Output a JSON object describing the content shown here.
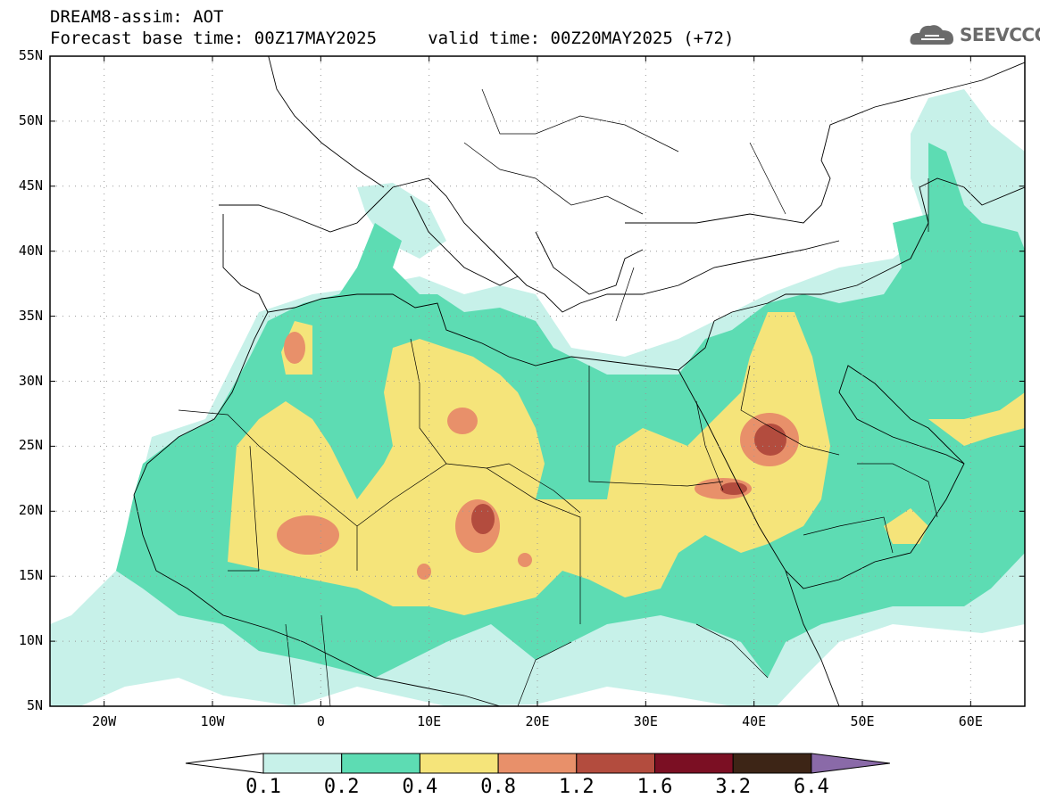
{
  "header": {
    "line1": "DREAM8-assim: AOT",
    "line2": "Forecast base time: 00Z17MAY2025     valid time: 00Z20MAY2025 (+72)",
    "logo_text": "SEEVCCC",
    "logo_icon": "cloud-logo-icon"
  },
  "map": {
    "lon_range": [
      -25,
      65
    ],
    "lat_range": [
      5,
      55
    ],
    "grid": true,
    "lat_labels": [
      "55N",
      "50N",
      "45N",
      "40N",
      "35N",
      "30N",
      "25N",
      "20N",
      "15N",
      "10N",
      "5N"
    ],
    "lon_labels": [
      "20W",
      "10W",
      "0",
      "10E",
      "20E",
      "30E",
      "40E",
      "50E",
      "60E"
    ]
  },
  "colorbar": {
    "labels": [
      "0.1",
      "0.2",
      "0.4",
      "0.8",
      "1.2",
      "1.6",
      "3.2",
      "6.4"
    ],
    "colors": [
      "#ffffff",
      "#c7f1e9",
      "#5ddcb3",
      "#f5e47a",
      "#e8906a",
      "#b34c3e",
      "#7b0f23",
      "#3d2516",
      "#8a6aa8"
    ]
  }
}
